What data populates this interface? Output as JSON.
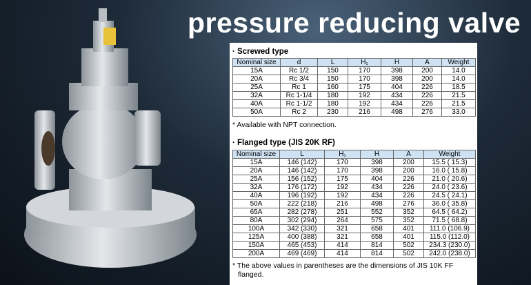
{
  "header": {
    "title": "pressure reducing valve"
  },
  "screwed": {
    "title": "· Screwed type",
    "headers": [
      "Nominal size",
      "d",
      "L",
      "H₁",
      "H",
      "A",
      "Weight"
    ],
    "rows": [
      [
        "15A",
        "Rc 1/2",
        "150",
        "170",
        "398",
        "200",
        "14.0"
      ],
      [
        "20A",
        "Rc 3/4",
        "150",
        "170",
        "398",
        "200",
        "14.0"
      ],
      [
        "25A",
        "Rc 1",
        "160",
        "175",
        "404",
        "226",
        "18.5"
      ],
      [
        "32A",
        "Rc 1-1/4",
        "180",
        "192",
        "434",
        "226",
        "21.5"
      ],
      [
        "40A",
        "Rc 1-1/2",
        "180",
        "192",
        "434",
        "226",
        "21.5"
      ],
      [
        "50A",
        "Rc 2",
        "230",
        "216",
        "498",
        "276",
        "33.0"
      ]
    ],
    "note": "* Available with NPT connection."
  },
  "flanged": {
    "title": "· Flanged type (JIS 20K RF)",
    "headers": [
      "Nominal size",
      "L",
      "H₁",
      "H",
      "A",
      "Weight"
    ],
    "rows": [
      [
        "15A",
        "146 (142)",
        "170",
        "398",
        "200",
        "15.5 ( 15.3)"
      ],
      [
        "20A",
        "146 (142)",
        "170",
        "398",
        "200",
        "16.0 ( 15.8)"
      ],
      [
        "25A",
        "156 (152)",
        "175",
        "404",
        "226",
        "21.0 ( 20.6)"
      ],
      [
        "32A",
        "176 (172)",
        "192",
        "434",
        "226",
        "24.0 ( 23.6)"
      ],
      [
        "40A",
        "196 (192)",
        "192",
        "434",
        "226",
        "24.5 ( 24.1)"
      ],
      [
        "50A",
        "222 (218)",
        "216",
        "498",
        "276",
        "36.0 ( 35.8)"
      ],
      [
        "65A",
        "282 (278)",
        "251",
        "552",
        "352",
        "64.5 ( 64.2)"
      ],
      [
        "80A",
        "302 (294)",
        "264",
        "575",
        "352",
        "71.5 ( 68.8)"
      ],
      [
        "100A",
        "342 (330)",
        "321",
        "658",
        "401",
        "111.0 (106.9)"
      ],
      [
        "125A",
        "400 (388)",
        "321",
        "658",
        "401",
        "115.0 (112.0)"
      ],
      [
        "150A",
        "465 (453)",
        "414",
        "814",
        "502",
        "234.3 (230.0)"
      ],
      [
        "200A",
        "469 (469)",
        "414",
        "814",
        "502",
        "242.0 (238.0)"
      ]
    ],
    "note": "* The above values in parentheses are the dimensions of JIS 10K FF flanged."
  }
}
